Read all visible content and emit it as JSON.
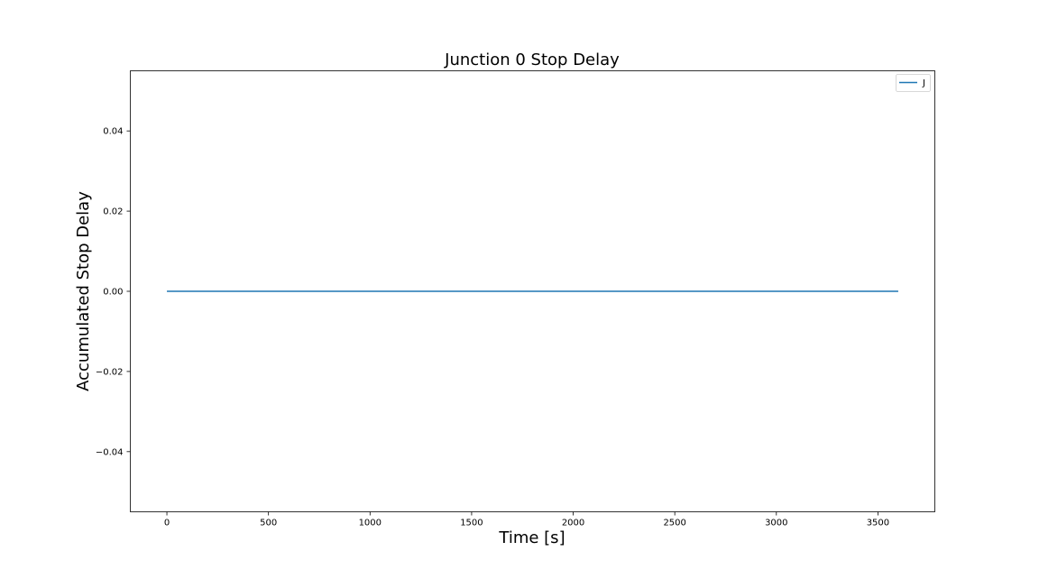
{
  "chart_data": {
    "type": "line",
    "title": "Junction 0 Stop Delay",
    "xlabel": "Time [s]",
    "ylabel": "Accumulated Stop Delay",
    "xlim": [
      -180,
      3780
    ],
    "ylim": [
      -0.055,
      0.055
    ],
    "xticks": [
      0,
      500,
      1000,
      1500,
      2000,
      2500,
      3000,
      3500
    ],
    "xtick_labels": [
      "0",
      "500",
      "1000",
      "1500",
      "2000",
      "2500",
      "3000",
      "3500"
    ],
    "yticks": [
      -0.04,
      -0.02,
      0.0,
      0.02,
      0.04
    ],
    "ytick_labels": [
      "−0.04",
      "−0.02",
      "0.00",
      "0.02",
      "0.04"
    ],
    "grid": false,
    "legend": {
      "position": "upper-right"
    },
    "series": [
      {
        "name": "J",
        "color": "#1f77b4",
        "x": [
          0,
          3600
        ],
        "y": [
          0,
          0
        ]
      }
    ]
  }
}
